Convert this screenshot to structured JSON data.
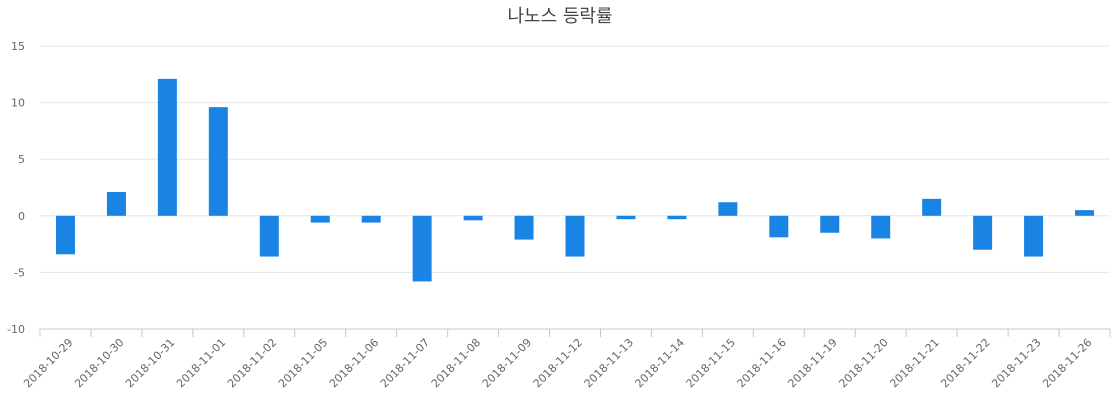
{
  "chart_data": {
    "type": "bar",
    "title": "나노스 등락률",
    "xlabel": "",
    "ylabel": "",
    "categories": [
      "2018-10-29",
      "2018-10-30",
      "2018-10-31",
      "2018-11-01",
      "2018-11-02",
      "2018-11-05",
      "2018-11-06",
      "2018-11-07",
      "2018-11-08",
      "2018-11-09",
      "2018-11-12",
      "2018-11-13",
      "2018-11-14",
      "2018-11-15",
      "2018-11-16",
      "2018-11-19",
      "2018-11-20",
      "2018-11-21",
      "2018-11-22",
      "2018-11-23",
      "2018-11-26"
    ],
    "values": [
      -3.4,
      2.1,
      12.1,
      9.6,
      -3.6,
      -0.6,
      -0.6,
      -5.8,
      -0.4,
      -2.1,
      -3.6,
      -0.3,
      -0.3,
      1.2,
      -1.9,
      -1.5,
      -2.0,
      1.5,
      -3.0,
      -3.6,
      0.5
    ],
    "ylim": [
      -10,
      15
    ],
    "yticks": [
      "15",
      "10",
      "5",
      "0",
      "-5",
      "-10"
    ],
    "grid": true,
    "legend": "none",
    "bar_color": "#1a84e5"
  }
}
